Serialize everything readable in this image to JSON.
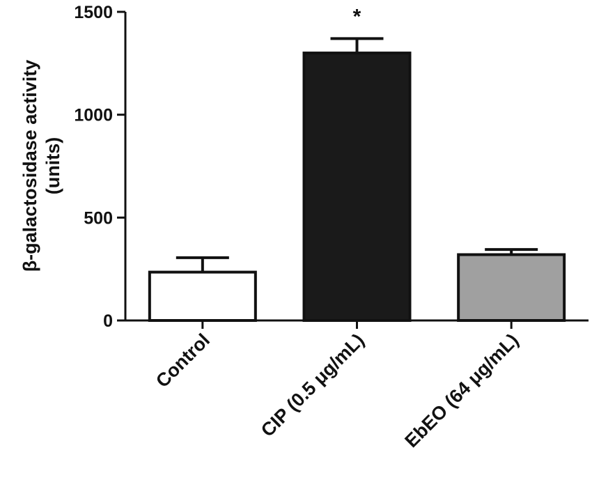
{
  "chart_data": {
    "type": "bar",
    "title": "",
    "xlabel": "",
    "ylabel_line1": "β-galactosidase activity",
    "ylabel_line2": "(units)",
    "ylim": [
      0,
      1500
    ],
    "yticks": [
      "0",
      "500",
      "1000",
      "1500"
    ],
    "categories": [
      "Control",
      "CIP (0.5 μg/mL)",
      "EbEO (64 μg/mL)"
    ],
    "values": [
      235,
      1300,
      320
    ],
    "errors": [
      70,
      70,
      25
    ],
    "annotations": [
      "",
      "*",
      ""
    ],
    "colors": [
      "#ffffff",
      "#1a1a1a",
      "#a0a0a0"
    ],
    "edge_color": "#111111",
    "grid": false,
    "legend": "none"
  }
}
